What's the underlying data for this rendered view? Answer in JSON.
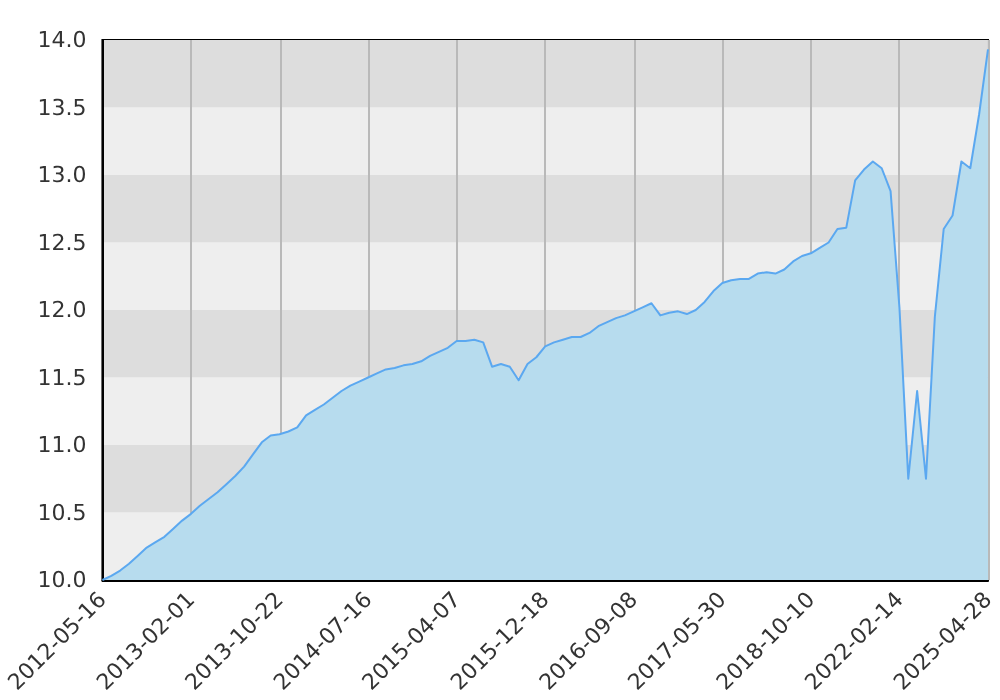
{
  "chart_data": {
    "type": "area",
    "categories": [
      "2012-05-16",
      null,
      null,
      null,
      null,
      null,
      null,
      null,
      null,
      null,
      "2013-02-01",
      null,
      null,
      null,
      null,
      null,
      null,
      null,
      null,
      null,
      "2013-10-22",
      null,
      null,
      null,
      null,
      null,
      null,
      null,
      null,
      null,
      "2014-07-16",
      null,
      null,
      null,
      null,
      null,
      null,
      null,
      null,
      null,
      "2015-04-07",
      null,
      null,
      null,
      null,
      null,
      null,
      null,
      null,
      null,
      "2015-12-18",
      null,
      null,
      null,
      null,
      null,
      null,
      null,
      null,
      null,
      "2016-09-08",
      null,
      null,
      null,
      null,
      null,
      null,
      null,
      null,
      null,
      "2017-05-30",
      null,
      null,
      null,
      null,
      null,
      null,
      null,
      null,
      null,
      "2018-10-10",
      null,
      null,
      null,
      null,
      null,
      null,
      null,
      null,
      null,
      "2022-02-14",
      null,
      null,
      null,
      null,
      null,
      null,
      null,
      null,
      null,
      "2025-04-28"
    ],
    "series": [
      {
        "color": "#5ba8f0",
        "values": [
          10.0,
          10.03,
          10.07,
          10.12,
          10.18,
          10.24,
          10.28,
          10.32,
          10.38,
          10.44,
          10.49,
          10.55,
          10.6,
          10.65,
          10.71,
          10.77,
          10.84,
          10.93,
          11.02,
          11.07,
          11.08,
          11.1,
          11.13,
          11.22,
          11.26,
          11.3,
          11.35,
          11.4,
          11.44,
          11.47,
          11.5,
          11.53,
          11.56,
          11.57,
          11.59,
          11.6,
          11.62,
          11.66,
          11.69,
          11.72,
          11.77,
          11.77,
          11.78,
          11.76,
          11.58,
          11.6,
          11.58,
          11.48,
          11.6,
          11.65,
          11.73,
          11.76,
          11.78,
          11.8,
          11.8,
          11.83,
          11.88,
          11.91,
          11.94,
          11.96,
          11.99,
          12.02,
          12.05,
          11.96,
          11.98,
          11.99,
          11.97,
          12.0,
          12.06,
          12.14,
          12.2,
          12.22,
          12.23,
          12.23,
          12.27,
          12.28,
          12.27,
          12.3,
          12.36,
          12.4,
          12.42,
          12.46,
          12.5,
          12.6,
          12.61,
          12.96,
          13.04,
          13.1,
          13.05,
          12.88,
          12.02,
          10.75,
          11.4,
          10.75,
          11.95,
          12.6,
          12.7,
          13.1,
          13.05,
          13.45,
          13.93
        ]
      }
    ],
    "ylim": [
      10,
      14
    ],
    "yticks": [
      {
        "value": 10,
        "label": "10.0"
      },
      {
        "value": 10.5,
        "label": "10.5"
      },
      {
        "value": 11,
        "label": "11.0"
      },
      {
        "value": 11.5,
        "label": "11.5"
      },
      {
        "value": 12,
        "label": "12.0"
      },
      {
        "value": 12.5,
        "label": "12.5"
      },
      {
        "value": 13,
        "label": "13.0"
      },
      {
        "value": 13.5,
        "label": "13.5"
      },
      {
        "value": 14,
        "label": "14.0"
      }
    ],
    "grid": true
  }
}
